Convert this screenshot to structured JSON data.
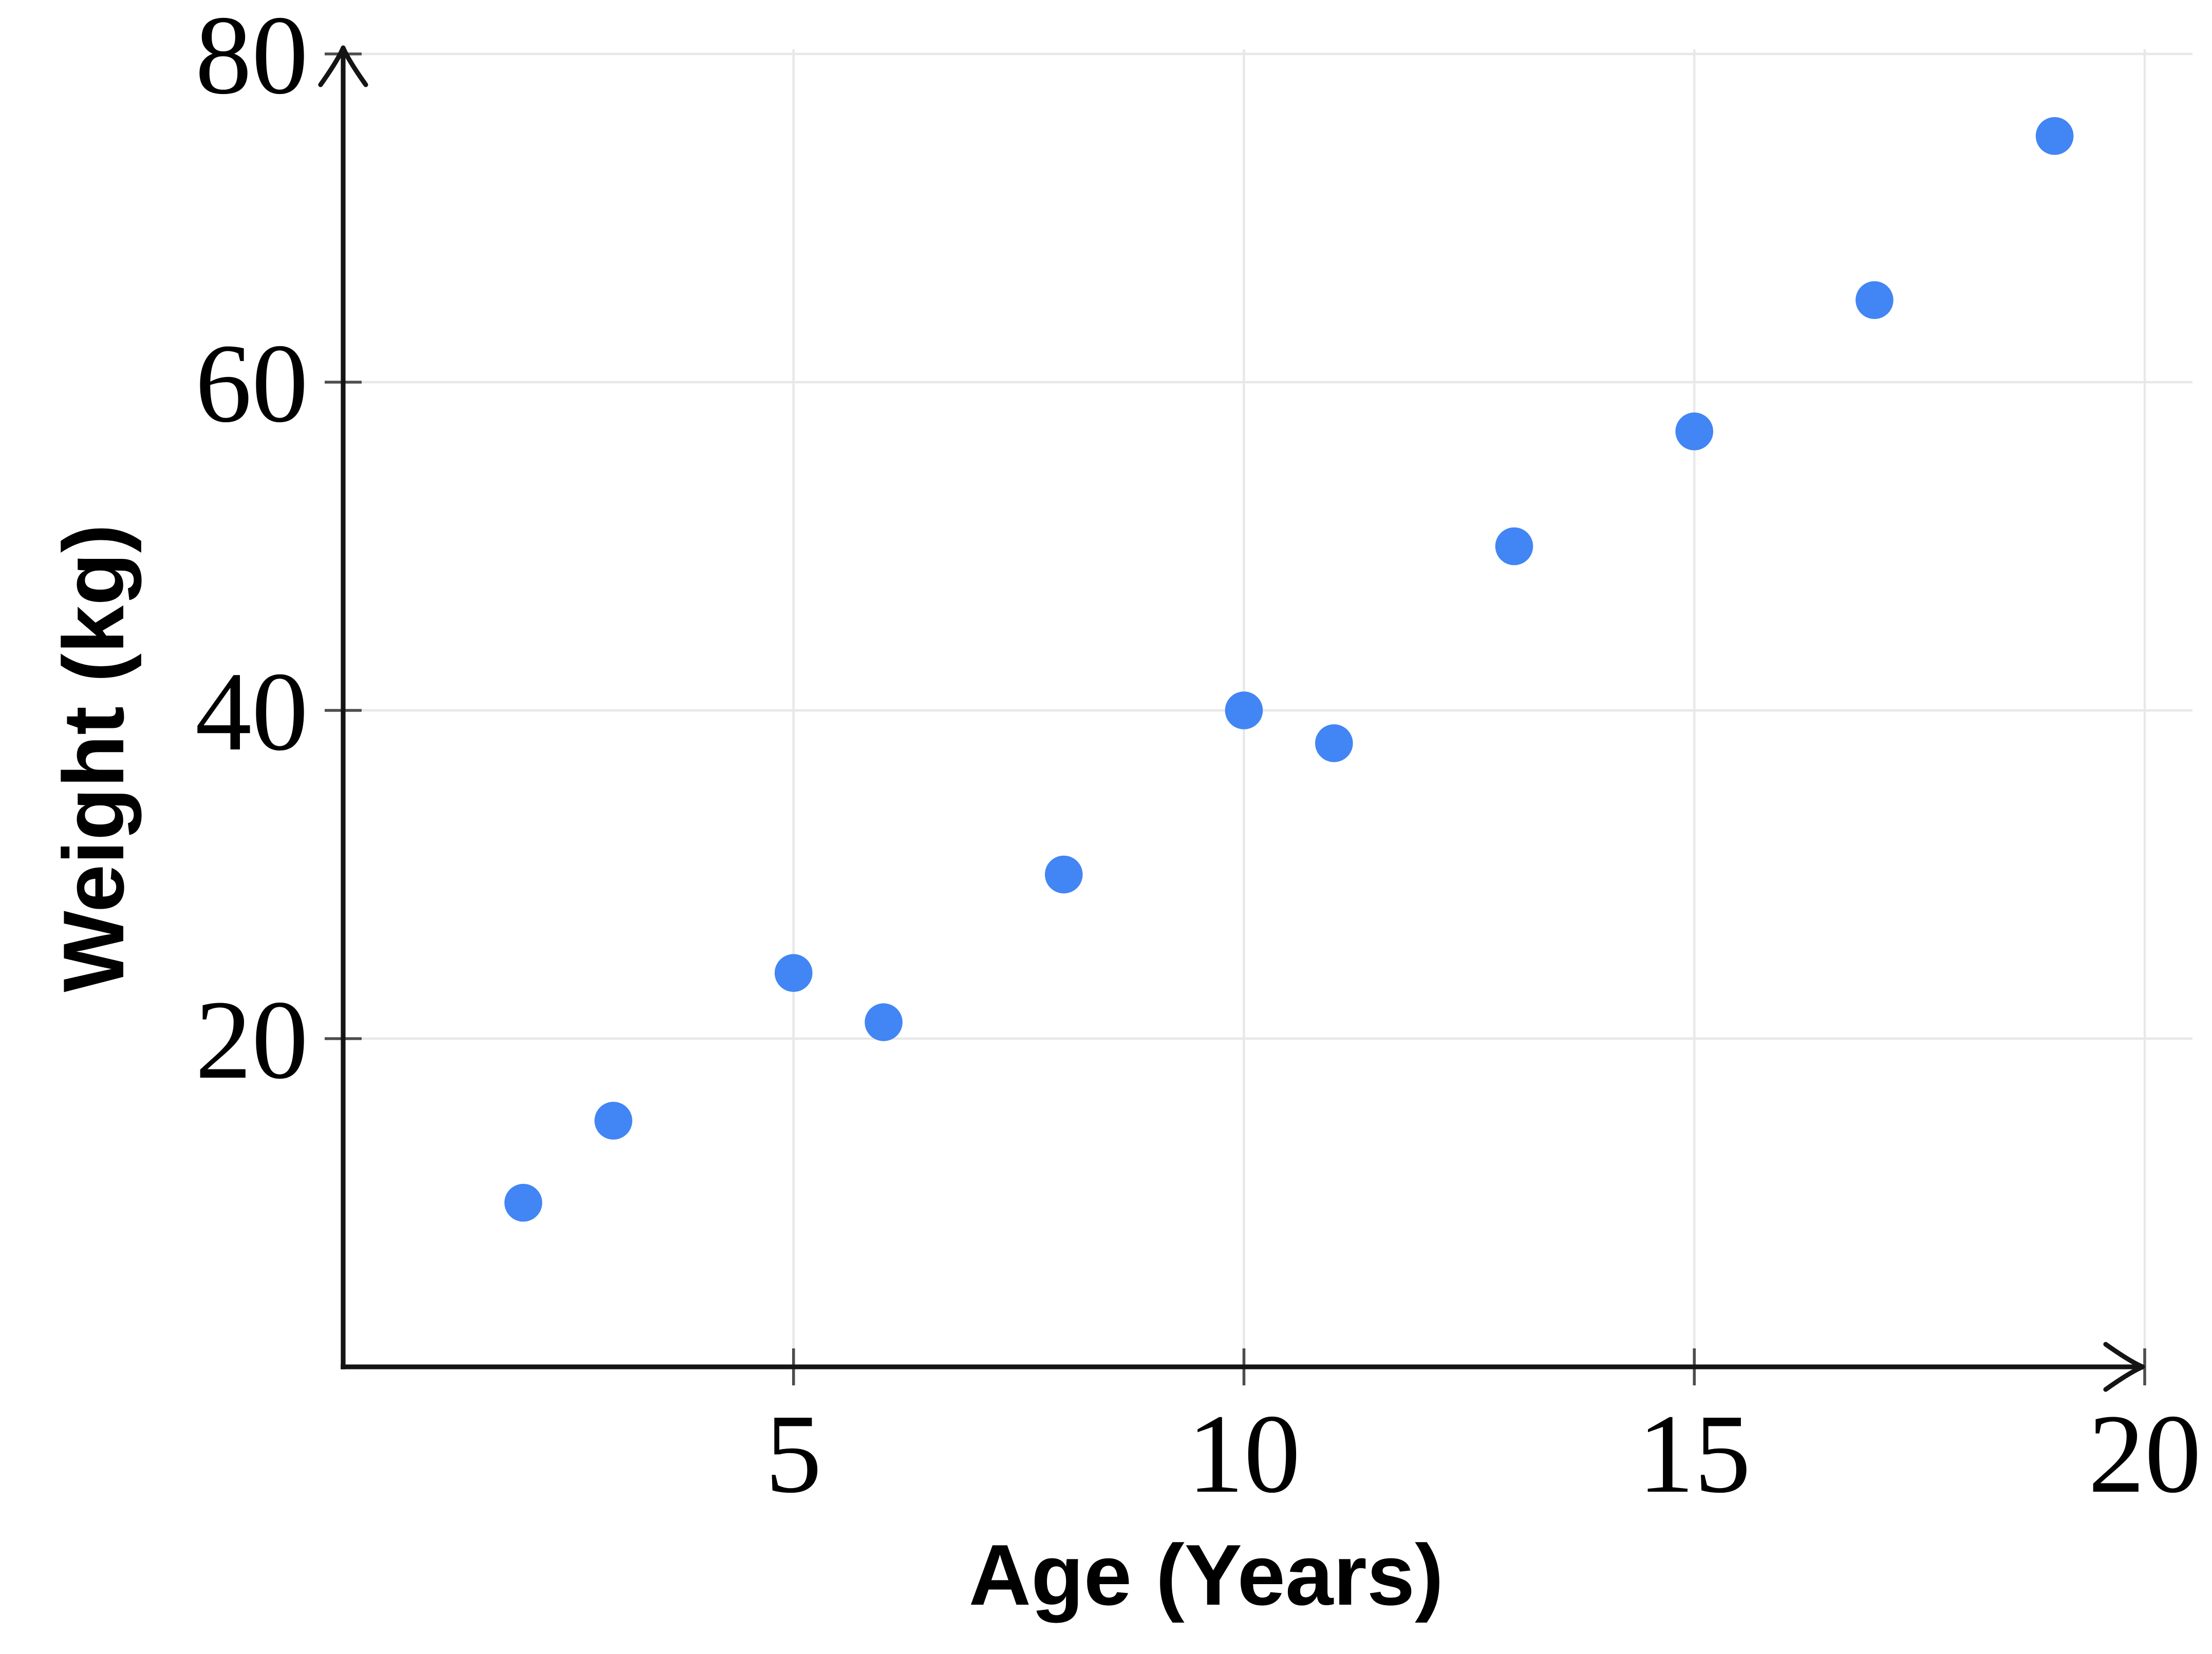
{
  "chart_data": {
    "type": "scatter",
    "title": "",
    "xlabel": "Age (Years)",
    "ylabel": "Weight (kg)",
    "xlim": [
      0,
      20
    ],
    "ylim": [
      0,
      80
    ],
    "x_ticks": [
      5,
      10,
      15,
      20
    ],
    "y_ticks": [
      20,
      40,
      60,
      80
    ],
    "grid": true,
    "legend": "none",
    "points": [
      {
        "x": 2,
        "y": 10
      },
      {
        "x": 3,
        "y": 15
      },
      {
        "x": 5,
        "y": 24
      },
      {
        "x": 6,
        "y": 21
      },
      {
        "x": 8,
        "y": 30
      },
      {
        "x": 10,
        "y": 40
      },
      {
        "x": 11,
        "y": 38
      },
      {
        "x": 13,
        "y": 50
      },
      {
        "x": 15,
        "y": 57
      },
      {
        "x": 17,
        "y": 65
      },
      {
        "x": 19,
        "y": 75
      }
    ],
    "colors": {
      "dot": "#4285F4",
      "axis": "#141414",
      "grid": "#E8E8E8",
      "tick": "#4D4D4D",
      "text": "#000000",
      "background": "#FFFFFF"
    }
  }
}
